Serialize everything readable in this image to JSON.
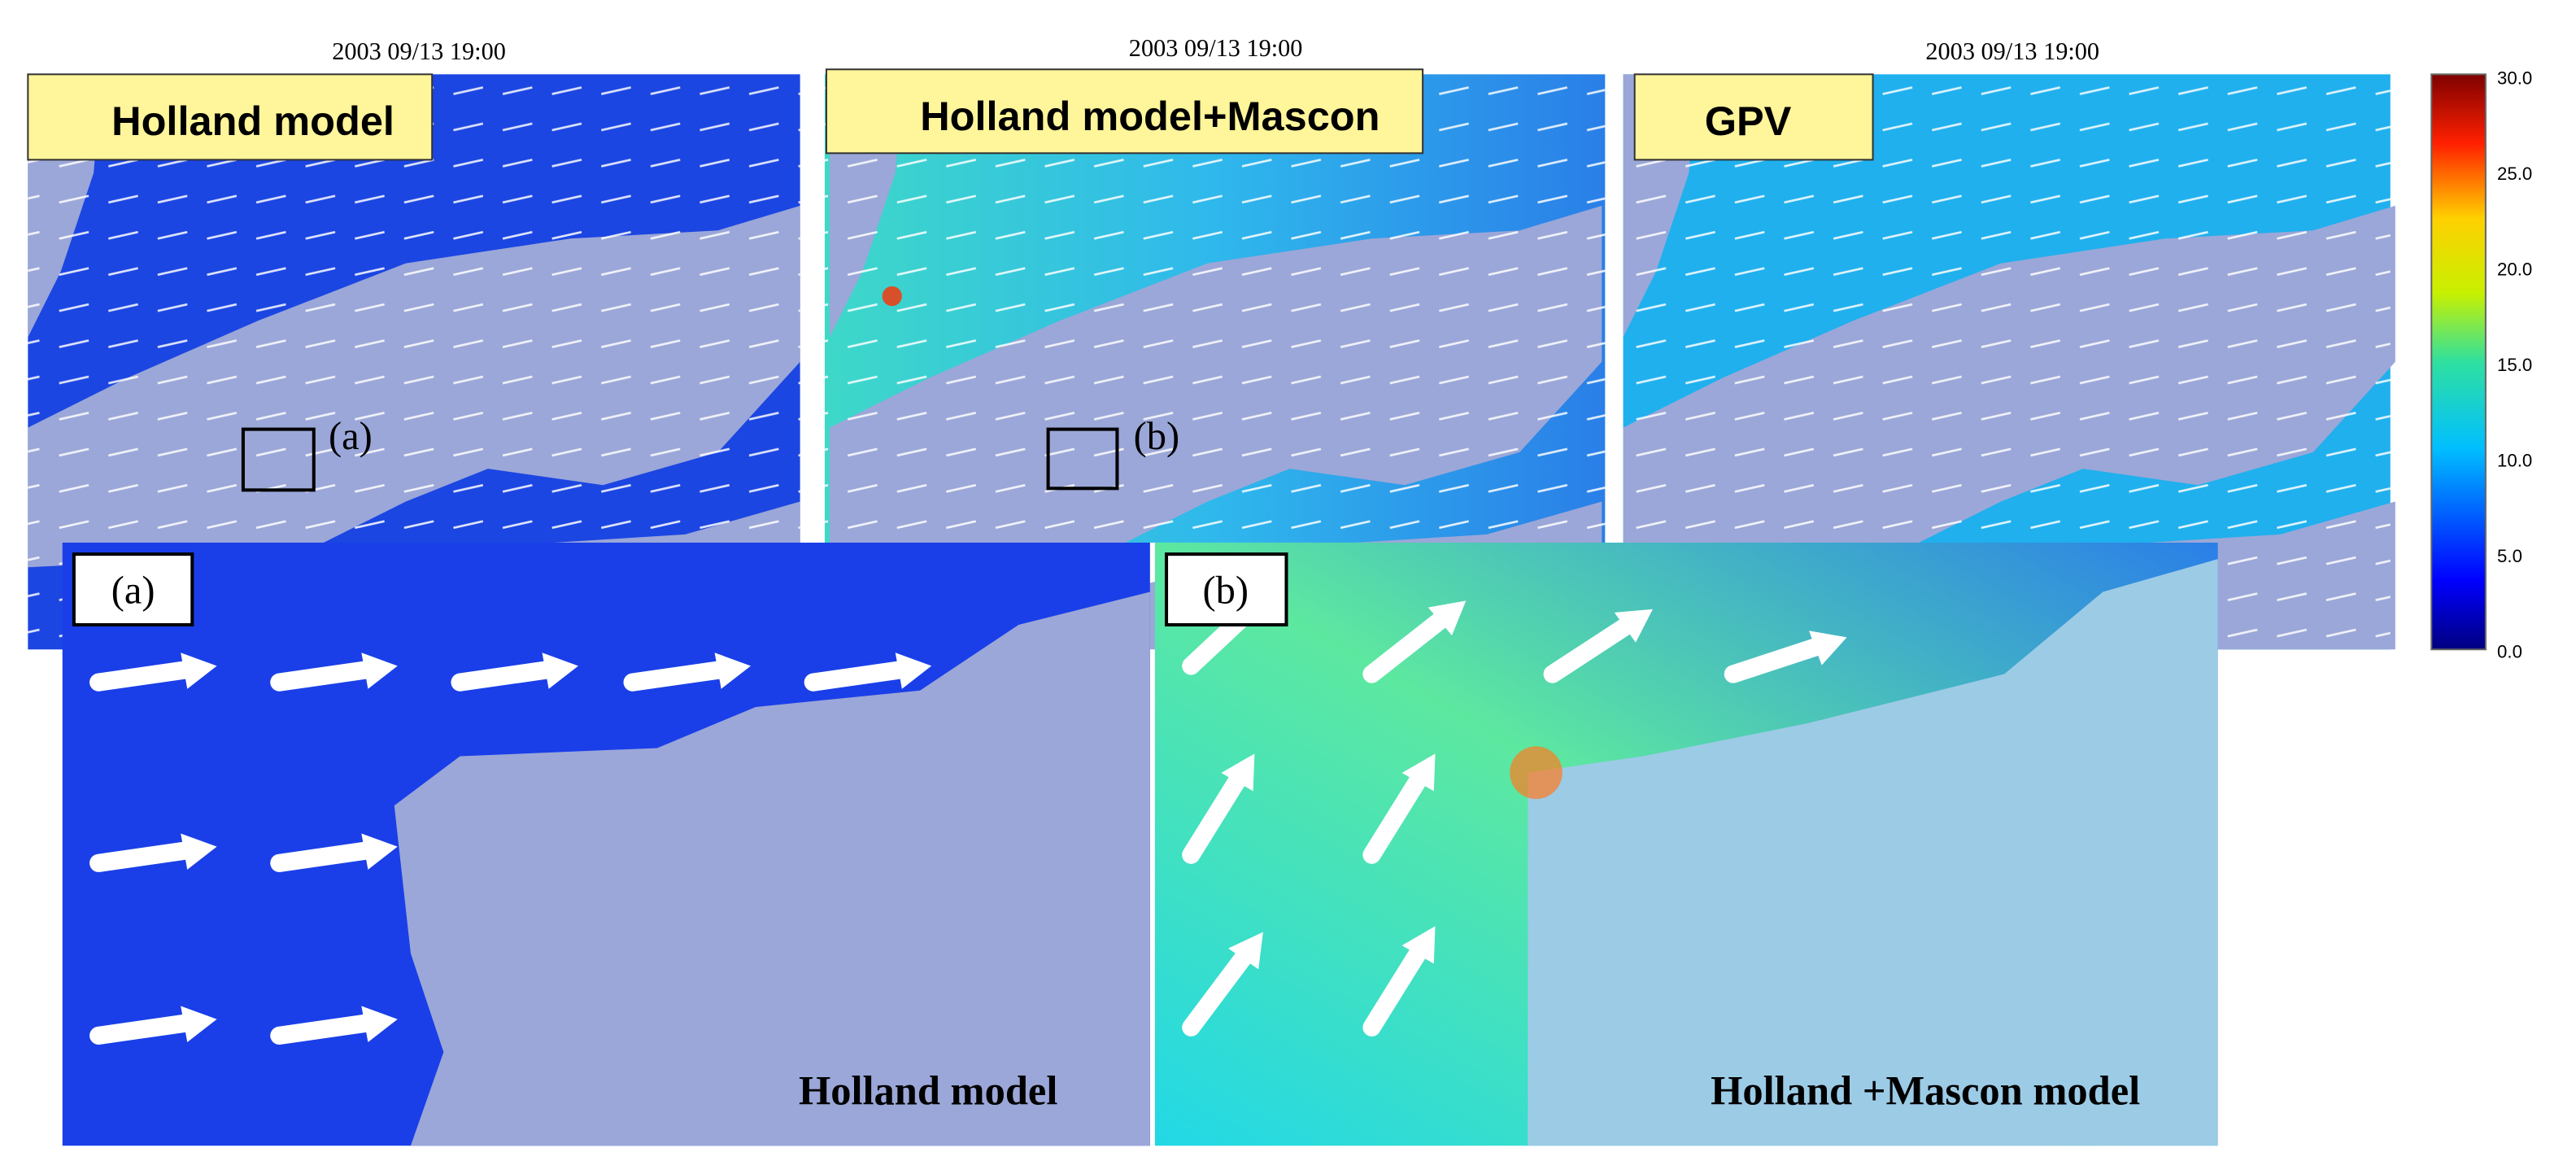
{
  "panels": [
    {
      "timestamp": "2003 09/13 19:00",
      "label": "Holland model",
      "marker": "(a)"
    },
    {
      "timestamp": "2003 09/13 19:00",
      "label": "Holland model+Mascon",
      "marker": "(b)"
    },
    {
      "timestamp": "2003 09/13 19:00",
      "label": "GPV"
    }
  ],
  "colorbar": {
    "ticks": [
      "30.0",
      "25.0",
      "20.0",
      "15.0",
      "10.0",
      "5.0",
      "0.0"
    ]
  },
  "insets": [
    {
      "label": "(a)",
      "caption": "Holland model"
    },
    {
      "label": "(b)",
      "caption": "Holland +Mascon model"
    }
  ]
}
